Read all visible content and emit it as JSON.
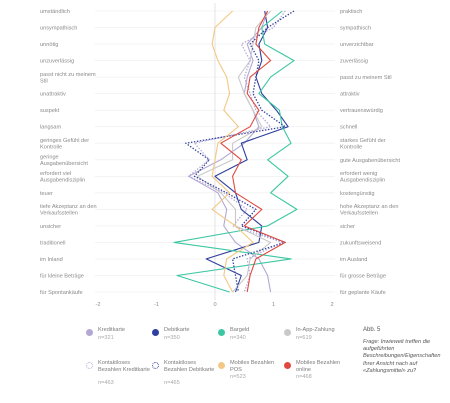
{
  "chart_data": {
    "type": "line",
    "title": "",
    "xlabel": "",
    "ylabel": "",
    "xlim": [
      -2,
      2
    ],
    "x_ticks": [
      "-2",
      "-1",
      "0",
      "1",
      "2"
    ],
    "grid": true,
    "orientation": "vertical-profile",
    "left_labels": [
      "umständlich",
      "unsympathisch",
      "unnötig",
      "unzuverlässig",
      "passt nicht zu meinem Stil",
      "unattraktiv",
      "suspekt",
      "langsam",
      "geringes Gefühl der Kontrolle",
      "geringe Ausgabenübersicht",
      "erfordert viel Ausgabendisziplin",
      "teuer",
      "tiefe Akzeptanz an den Verkaufsstellen",
      "unsicher",
      "traditionell",
      "im Inland",
      "für kleine Beträge",
      "für Spontankäufe"
    ],
    "right_labels": [
      "praktisch",
      "sympathisch",
      "unverzichtbar",
      "zuverlässig",
      "passt zu meinem Stil",
      "attraktiv",
      "vertrauenswürdig",
      "schnell",
      "starkes Gefühl der Kontrolle",
      "gute Ausgabenübersicht",
      "erfordert wenig Ausgabendisziplin",
      "kostengünstig",
      "hohe Akzeptanz an den Verkaufsstellen",
      "sicher",
      "zukunftsweisend",
      "im Ausland",
      "für grosse Beträge",
      "für geplante Käufe"
    ],
    "series": [
      {
        "name": "Kreditkarte",
        "n": "n=321",
        "color": "#b3a8d4",
        "dash": "solid",
        "values": [
          0.9,
          0.8,
          0.55,
          0.65,
          0.55,
          0.5,
          0.65,
          0.75,
          0.5,
          0.1,
          -0.45,
          0.05,
          0.2,
          0.15,
          0.35,
          0.75,
          0.9,
          0.95
        ]
      },
      {
        "name": "Debitkarte",
        "n": "n=350",
        "color": "#2f3f9e",
        "dash": "solid",
        "values": [
          0.85,
          0.9,
          0.75,
          0.8,
          0.7,
          0.8,
          1.05,
          1.25,
          0.45,
          0.55,
          0.0,
          0.35,
          0.45,
          0.8,
          0.75,
          -0.15,
          0.45,
          0.35
        ]
      },
      {
        "name": "Bargeld",
        "n": "n=340",
        "color": "#3cc7a2",
        "dash": "solid",
        "values": [
          1.15,
          0.8,
          0.85,
          1.35,
          0.95,
          0.75,
          1.1,
          1.15,
          1.3,
          0.9,
          1.25,
          0.95,
          1.4,
          0.9,
          -0.7,
          1.3,
          -0.65,
          0.25
        ]
      },
      {
        "name": "In-App-Zahlung",
        "n": "n=619",
        "color": "#c9c9c9",
        "dash": "solid",
        "values": [
          0.95,
          0.7,
          0.65,
          0.6,
          0.4,
          0.5,
          0.65,
          0.8,
          0.3,
          0.3,
          -0.3,
          0.1,
          0.35,
          0.35,
          0.95,
          0.6,
          0.55,
          0.3
        ]
      },
      {
        "name": "Kontaktloses Bezahlen Kreditkarte",
        "n": "n=463",
        "color": "#b3a8d4",
        "dash": "dotted",
        "values": [
          1.2,
          1.0,
          0.45,
          0.6,
          0.5,
          0.6,
          0.7,
          0.95,
          -0.35,
          -0.1,
          -0.45,
          0.15,
          0.55,
          0.3,
          1.15,
          0.55,
          0.6,
          0.5
        ]
      },
      {
        "name": "Kontaktloses Bezahlen Debitkarte",
        "n": "n=465",
        "color": "#2f3f9e",
        "dash": "dotted",
        "values": [
          1.35,
          0.9,
          0.6,
          0.75,
          0.7,
          0.65,
          0.8,
          1.2,
          -0.5,
          -0.1,
          -0.35,
          0.2,
          0.7,
          0.45,
          1.2,
          0.3,
          0.35,
          0.4
        ]
      },
      {
        "name": "Mobiles Bezahlen POS",
        "n": "n=523",
        "color": "#f3c884",
        "dash": "solid",
        "values": [
          0.3,
          0.0,
          -0.05,
          0.05,
          0.2,
          0.25,
          0.15,
          0.4,
          0.05,
          0.0,
          -0.05,
          0.25,
          -0.05,
          0.35,
          0.65,
          0.2,
          0.15,
          0.3
        ]
      },
      {
        "name": "Mobiles Bezahlen online",
        "n": "n=468",
        "color": "#e0493f",
        "dash": "solid",
        "values": [
          0.9,
          0.75,
          0.7,
          0.95,
          0.6,
          0.55,
          0.75,
          0.6,
          0.1,
          0.45,
          0.3,
          0.35,
          0.8,
          0.5,
          1.2,
          0.7,
          0.6,
          0.55
        ]
      }
    ]
  },
  "caption": {
    "figure": "Abb. 5",
    "question": "Frage: Inwieweit treffen die aufgeführten Beschreibungen/Eigenschaften Ihrer Ansicht nach auf «Zahlungsmittel» zu?"
  }
}
